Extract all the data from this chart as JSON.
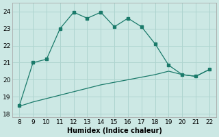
{
  "xlabel": "Humidex (Indice chaleur)",
  "x_main": [
    8,
    9,
    10,
    11,
    12,
    13,
    14,
    15,
    16,
    17,
    18,
    19,
    20,
    21,
    22
  ],
  "y_main": [
    18.5,
    21.0,
    21.2,
    23.0,
    23.95,
    23.6,
    23.95,
    23.1,
    23.6,
    23.1,
    22.1,
    20.85,
    20.3,
    20.2,
    20.6
  ],
  "x_line2": [
    8,
    9,
    10,
    11,
    12,
    13,
    14,
    15,
    16,
    17,
    18,
    19,
    20,
    21,
    22
  ],
  "y_line2": [
    18.45,
    18.7,
    18.9,
    19.1,
    19.3,
    19.5,
    19.7,
    19.85,
    20.0,
    20.15,
    20.3,
    20.5,
    20.3,
    20.2,
    20.6
  ],
  "line_color": "#1a7a6a",
  "bg_color": "#cce8e4",
  "grid_color": "#aed4cf",
  "xlim": [
    7.5,
    22.5
  ],
  "ylim": [
    17.8,
    24.5
  ],
  "xticks": [
    8,
    9,
    10,
    11,
    12,
    13,
    14,
    15,
    16,
    17,
    18,
    19,
    20,
    21,
    22
  ],
  "yticks": [
    18,
    19,
    20,
    21,
    22,
    23,
    24
  ]
}
